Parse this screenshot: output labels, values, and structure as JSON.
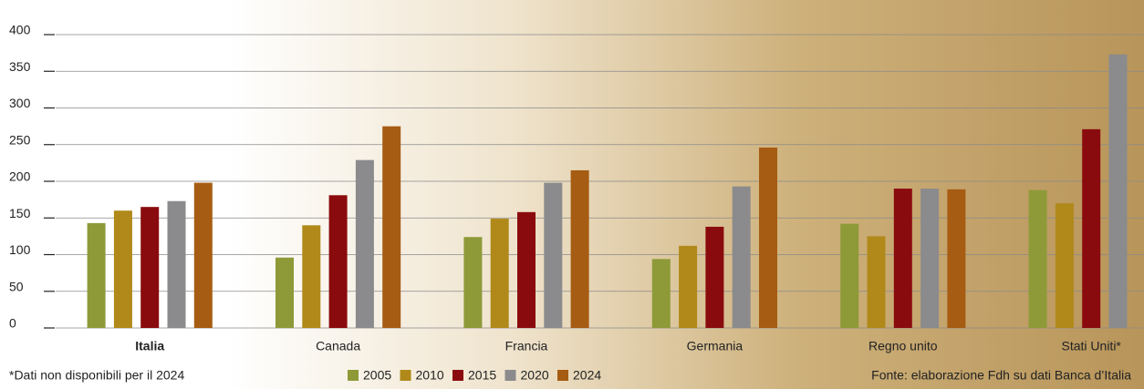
{
  "chart_data": {
    "type": "bar",
    "categories": [
      "Italia",
      "Canada",
      "Francia",
      "Germania",
      "Regno unito",
      "Stati Uniti*"
    ],
    "series": [
      {
        "name": "2005",
        "color": "#8e9a38",
        "values": [
          143,
          96,
          124,
          94,
          142,
          188
        ]
      },
      {
        "name": "2010",
        "color": "#b0891a",
        "values": [
          160,
          140,
          149,
          112,
          125,
          170
        ]
      },
      {
        "name": "2015",
        "color": "#8a0b0d",
        "values": [
          165,
          181,
          158,
          138,
          190,
          271
        ]
      },
      {
        "name": "2020",
        "color": "#8b8b8d",
        "values": [
          173,
          229,
          198,
          193,
          190,
          373
        ]
      },
      {
        "name": "2024",
        "color": "#a65c12",
        "values": [
          198,
          275,
          215,
          246,
          189,
          null
        ]
      }
    ],
    "ylim": [
      0,
      400
    ],
    "yticks": [
      0,
      50,
      100,
      150,
      200,
      250,
      300,
      350,
      400
    ],
    "grid": true,
    "legend": "bottom",
    "footnote": "*Dati non disponibili per il 2024",
    "source": "Fonte: elaborazione Fdh su dati Banca d’Italia"
  }
}
